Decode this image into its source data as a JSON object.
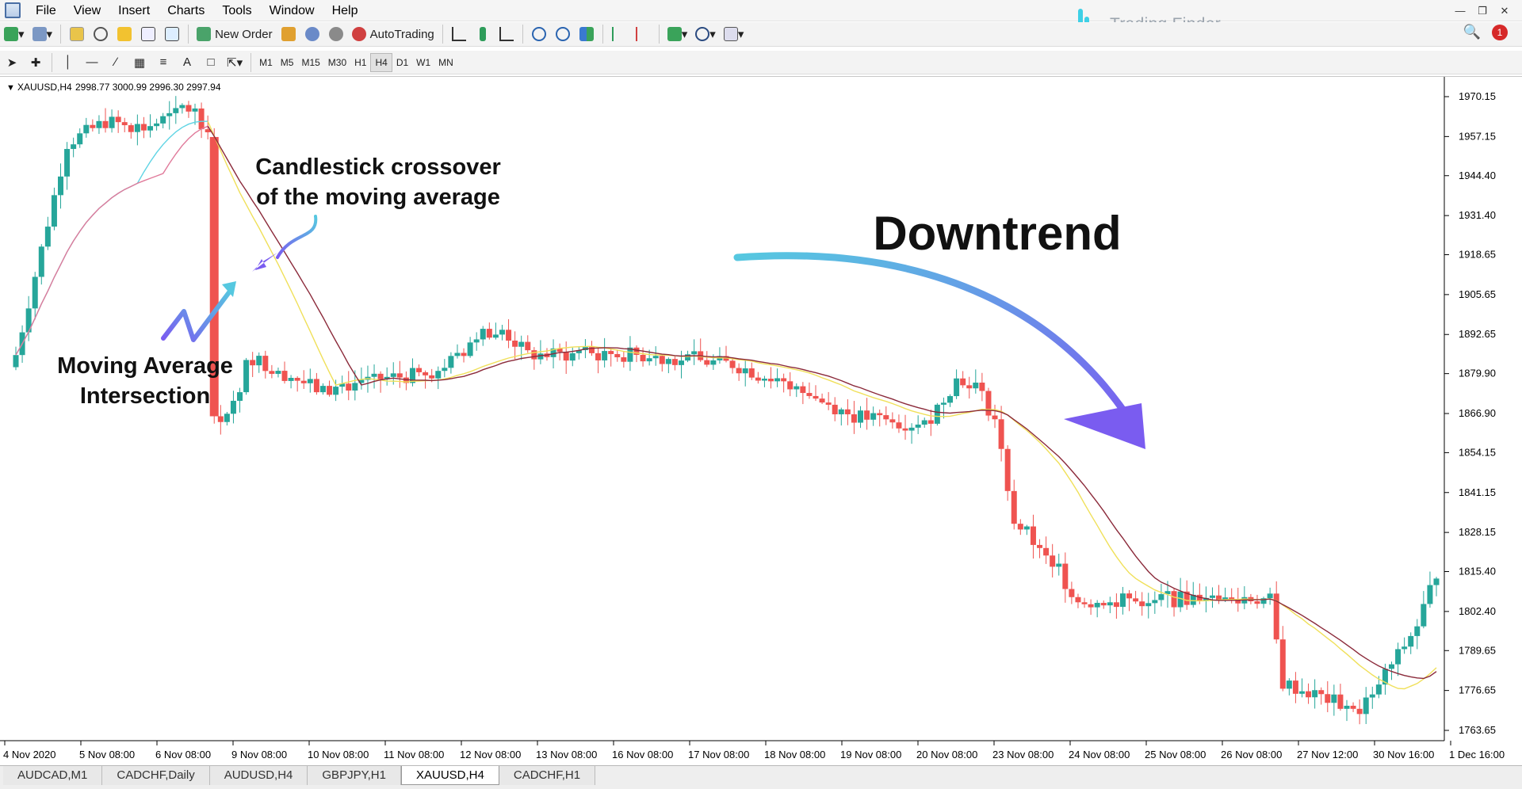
{
  "menu": [
    "File",
    "View",
    "Insert",
    "Charts",
    "Tools",
    "Window",
    "Help"
  ],
  "brand": {
    "name": "Trading Finder"
  },
  "toolbar": {
    "new_order": "New Order",
    "autotrading": "AutoTrading"
  },
  "timeframes": [
    "M1",
    "M5",
    "M15",
    "M30",
    "H1",
    "H4",
    "D1",
    "W1",
    "MN"
  ],
  "active_timeframe": "H4",
  "notification_count": "1",
  "chart": {
    "header": "XAUUSD,H4",
    "ohlc": "2998.77 3000.99 2996.30 2997.94",
    "y_ticks": [
      "1970.15",
      "1957.15",
      "1944.40",
      "1931.40",
      "1918.65",
      "1905.65",
      "1892.65",
      "1879.90",
      "1866.90",
      "1854.15",
      "1841.15",
      "1828.15",
      "1815.40",
      "1802.40",
      "1789.65",
      "1776.65",
      "1763.65"
    ],
    "x_ticks": [
      "4 Nov 2020",
      "5 Nov 08:00",
      "6 Nov 08:00",
      "9 Nov 08:00",
      "10 Nov 08:00",
      "11 Nov 08:00",
      "12 Nov 08:00",
      "13 Nov 08:00",
      "16 Nov 08:00",
      "17 Nov 08:00",
      "18 Nov 08:00",
      "19 Nov 08:00",
      "20 Nov 08:00",
      "23 Nov 08:00",
      "24 Nov 08:00",
      "25 Nov 08:00",
      "26 Nov 08:00",
      "27 Nov 12:00",
      "30 Nov 16:00",
      "1 Dec 16:00"
    ],
    "annotations": {
      "crossover_line1": "Candlestick crossover",
      "crossover_line2": "of the moving average",
      "downtrend": "Downtrend",
      "ma_line1": "Moving Average",
      "ma_line2": "Intersection"
    },
    "colors": {
      "bull": "#26a69a",
      "bear": "#ef5350",
      "ma_fast": "#f0e05a",
      "ma_slow": "#8b2a3a",
      "ma_fast_start": "#5fd4e4",
      "ma_slow_start": "#e07a9a",
      "arrow": "#56c8e0"
    }
  },
  "tabs": [
    "AUDCAD,M1",
    "CADCHF,Daily",
    "AUDUSD,H4",
    "GBPJPY,H1",
    "XAUUSD,H4",
    "CADCHF,H1"
  ],
  "active_tab": "XAUUSD,H4"
}
